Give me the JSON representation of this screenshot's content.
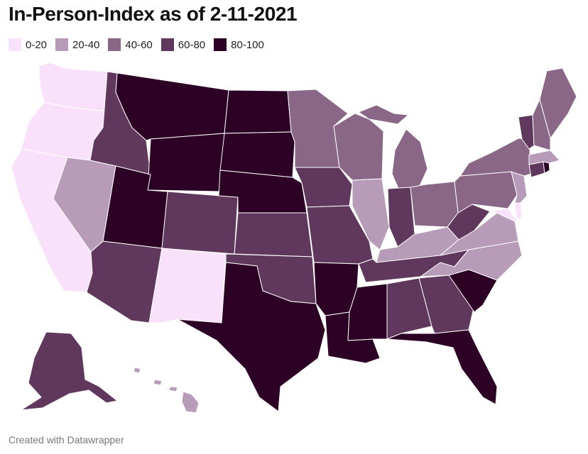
{
  "title": "In-Person-Index as of 2-11-2021",
  "legend": [
    {
      "label": "0-20",
      "color": "#f9e1fc"
    },
    {
      "label": "20-40",
      "color": "#b89ab9"
    },
    {
      "label": "40-60",
      "color": "#8a6787"
    },
    {
      "label": "60-80",
      "color": "#61385d"
    },
    {
      "label": "80-100",
      "color": "#2d0025"
    }
  ],
  "credit": "Created with Datawrapper",
  "states": {
    "WA": "0-20",
    "OR": "0-20",
    "CA": "0-20",
    "NM": "0-20",
    "MD": "0-20",
    "DE": "0-20",
    "NV": "20-40",
    "IL": "20-40",
    "KY": "20-40",
    "VA": "20-40",
    "NC": "20-40",
    "NJ": "20-40",
    "MA": "20-40",
    "HI": "20-40",
    "MN": "40-60",
    "WI": "40-60",
    "MI": "40-60",
    "OH": "40-60",
    "PA": "40-60",
    "NY": "40-60",
    "ME": "40-60",
    "NH": "40-60",
    "ID": "60-80",
    "CO": "60-80",
    "AZ": "60-80",
    "KS": "60-80",
    "OK": "60-80",
    "IA": "60-80",
    "MO": "60-80",
    "IN": "60-80",
    "WV": "60-80",
    "TN": "60-80",
    "AL": "60-80",
    "GA": "60-80",
    "AK": "60-80",
    "VT": "60-80",
    "CT": "60-80",
    "MT": "80-100",
    "WY": "80-100",
    "UT": "80-100",
    "ND": "80-100",
    "SD": "80-100",
    "NE": "80-100",
    "TX": "80-100",
    "AR": "80-100",
    "LA": "80-100",
    "MS": "80-100",
    "FL": "80-100",
    "SC": "80-100",
    "RI": "80-100"
  }
}
